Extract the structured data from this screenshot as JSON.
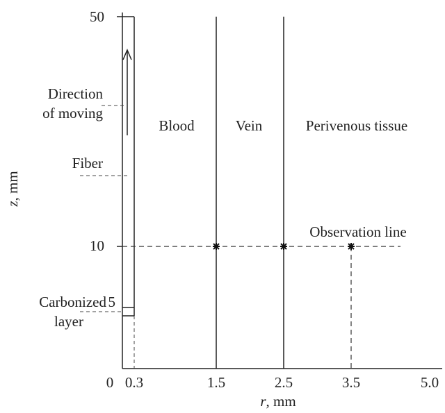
{
  "diagram": {
    "regions": [
      "Blood",
      "Vein",
      "Perivenous tissue"
    ],
    "observation_label": "Observation line",
    "annotations": {
      "direction": [
        "Direction",
        "of moving"
      ],
      "fiber": "Fiber",
      "carbonized": [
        "Carbonized",
        "layer"
      ]
    },
    "x_axis": {
      "symbol": "r",
      "unit": ", mm",
      "ticks": [
        "0",
        "0.3",
        "1.5",
        "2.5",
        "3.5",
        "5.0"
      ]
    },
    "y_axis": {
      "symbol": "z",
      "unit": ", mm",
      "ticks": [
        "50",
        "10",
        "5"
      ]
    }
  }
}
